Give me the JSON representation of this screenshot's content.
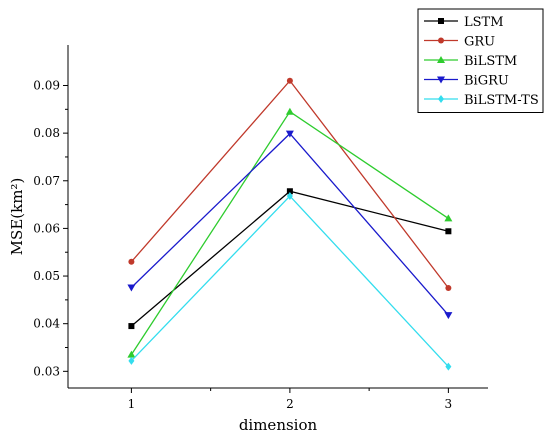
{
  "chart_data": {
    "type": "line",
    "title": "",
    "xlabel": "dimension",
    "ylabel": "MSE(km²)",
    "x": [
      1,
      2,
      3
    ],
    "x_ticks": [
      "1",
      "2",
      "3"
    ],
    "xlim": [
      0.6,
      3.25
    ],
    "ylim": [
      0.0265,
      0.0985
    ],
    "y_ticks": [
      "0.03",
      "0.04",
      "0.05",
      "0.06",
      "0.07",
      "0.08",
      "0.09"
    ],
    "y_tick_values": [
      0.03,
      0.04,
      0.05,
      0.06,
      0.07,
      0.08,
      0.09
    ],
    "grid": false,
    "legend_position": "top-right",
    "series": [
      {
        "name": "LSTM",
        "values": [
          0.0395,
          0.0678,
          0.0594
        ],
        "color": "#000000",
        "marker": "square"
      },
      {
        "name": "GRU",
        "values": [
          0.053,
          0.091,
          0.0475
        ],
        "color": "#c0392b",
        "marker": "circle"
      },
      {
        "name": "BiLSTM",
        "values": [
          0.0335,
          0.0845,
          0.0621
        ],
        "color": "#2ecc2e",
        "marker": "triangle-up"
      },
      {
        "name": "BiGRU",
        "values": [
          0.0476,
          0.0799,
          0.0418
        ],
        "color": "#1a1acc",
        "marker": "triangle-down"
      },
      {
        "name": "BiLSTM-TS",
        "values": [
          0.0322,
          0.0668,
          0.031
        ],
        "color": "#33ddee",
        "marker": "diamond"
      }
    ]
  }
}
